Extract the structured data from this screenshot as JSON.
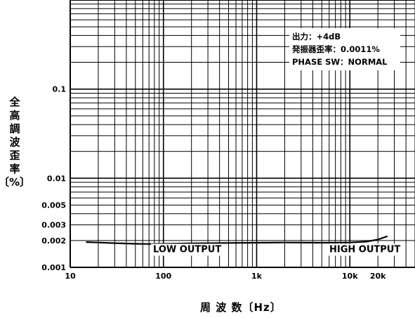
{
  "chart_data": {
    "type": "line",
    "xscale": "log",
    "yscale": "log",
    "xlim": [
      10,
      50000
    ],
    "ylim": [
      0.001,
      1
    ],
    "xticks": [
      {
        "value": 10,
        "label": "10"
      },
      {
        "value": 100,
        "label": "100"
      },
      {
        "value": 1000,
        "label": "1k"
      },
      {
        "value": 10000,
        "label": "10k"
      },
      {
        "value": 20000,
        "label": "20k"
      }
    ],
    "yticks": [
      {
        "value": 0.1,
        "label": "0.1"
      },
      {
        "value": 0.01,
        "label": "0.01"
      },
      {
        "value": 0.005,
        "label": "0.005"
      },
      {
        "value": 0.003,
        "label": "0.003"
      },
      {
        "value": 0.002,
        "label": "0.002"
      },
      {
        "value": 0.001,
        "label": "0.001"
      }
    ],
    "xlabel": "周 波 数〔Hz〕",
    "ylabel": [
      "全",
      "高",
      "調",
      "波",
      "歪",
      "率"
    ],
    "ylabel_unit": "〔%〕",
    "grid": true,
    "series": [
      {
        "x": [
          15,
          20,
          30,
          50,
          70,
          100,
          200,
          500,
          1000,
          2000,
          5000,
          10000,
          15000,
          20000,
          25000
        ],
        "y": [
          0.00192,
          0.0019,
          0.00187,
          0.00184,
          0.00183,
          0.00184,
          0.00186,
          0.00188,
          0.00189,
          0.0019,
          0.00189,
          0.0019,
          0.00194,
          0.00205,
          0.00222
        ]
      }
    ],
    "annotations": [
      {
        "text": "LOW OUTPUT",
        "x": 180,
        "y": 0.00162
      },
      {
        "text": "HIGH OUTPUT",
        "x": 14500,
        "y": 0.00162
      }
    ],
    "legend": {
      "position": "top-right",
      "lines": [
        "出力：+4dB",
        "発振器歪率：0.0011%",
        "PHASE SW：NORMAL"
      ]
    }
  }
}
